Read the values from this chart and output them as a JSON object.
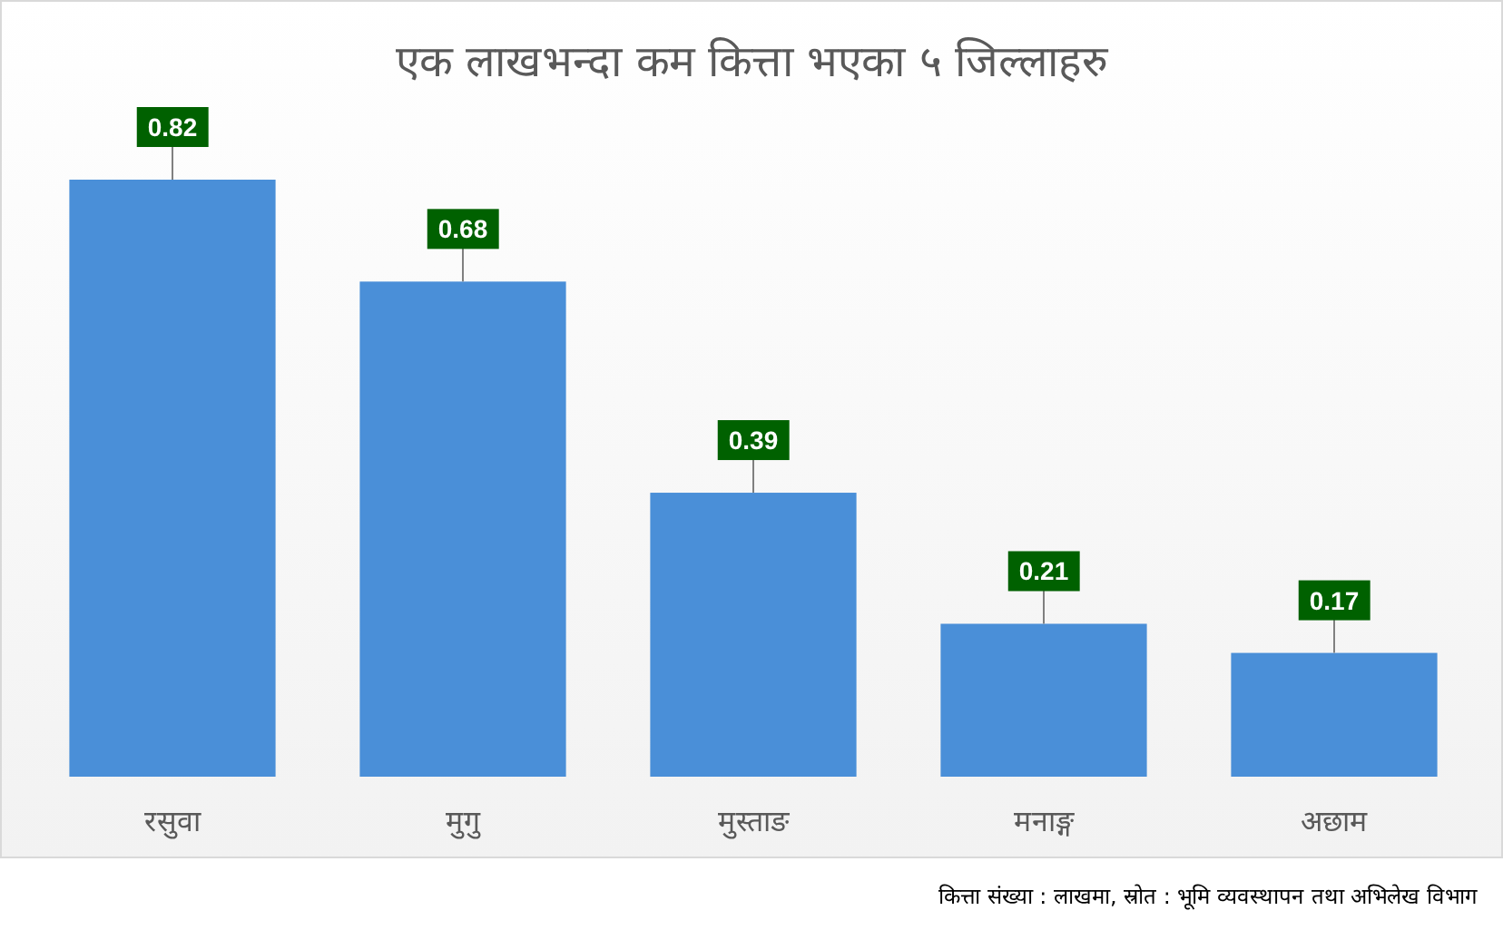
{
  "chart_data": {
    "type": "bar",
    "title": "एक लाखभन्दा कम कित्ता भएका ५ जिल्लाहरु",
    "categories": [
      "रसुवा",
      "मुगु",
      "मुस्ताङ",
      "मनाङ्ग",
      "अछाम"
    ],
    "values": [
      0.82,
      0.68,
      0.39,
      0.21,
      0.17
    ],
    "color": "#4a8fd8",
    "data_labels": true,
    "annotations": [
      "कित्ता संख्या : लाखमा, स्रोत : भूमि व्यवस्थापन तथा अभिलेख विभाग"
    ]
  }
}
